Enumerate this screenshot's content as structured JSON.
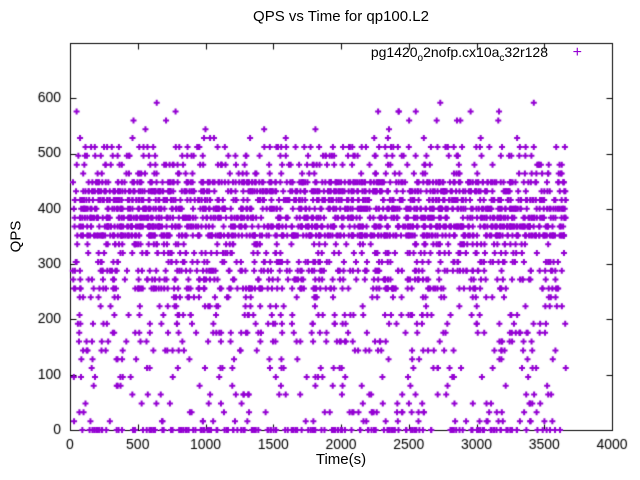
{
  "chart_data": {
    "type": "scatter",
    "title": "QPS vs Time for qp100.L2",
    "xlabel": "Time(s)",
    "ylabel": "QPS",
    "legend": {
      "position": "top-right-inside",
      "series_label_parts": [
        "pg1420",
        "o",
        "2nofp.cx10a",
        "c",
        "32r128"
      ],
      "series_label_plain": "pg1420_o2nofp.cx10a_c32r128",
      "marker": "plus",
      "marker_glyph": "+"
    },
    "color": "#9400d3",
    "axis_color": "#000000",
    "background": "#ffffff",
    "grid": false,
    "xlim": [
      0,
      4000
    ],
    "ylim": [
      0,
      700
    ],
    "xticks": [
      0,
      500,
      1000,
      1500,
      2000,
      2500,
      3000,
      3500,
      4000
    ],
    "yticks": [
      0,
      100,
      200,
      300,
      400,
      500,
      600
    ],
    "x_data_range": [
      20,
      3660
    ],
    "y_step": 16,
    "seed": 1337,
    "point_bands": [
      {
        "y_min": 0,
        "y_max": 0,
        "count": 170
      },
      {
        "y_min": 16,
        "y_max": 128,
        "count": 180
      },
      {
        "y_min": 144,
        "y_max": 240,
        "count": 260
      },
      {
        "y_min": 256,
        "y_max": 336,
        "count": 520
      },
      {
        "y_min": 352,
        "y_max": 448,
        "count": 1500
      },
      {
        "y_min": 464,
        "y_max": 512,
        "count": 220
      },
      {
        "y_min": 528,
        "y_max": 592,
        "count": 35
      }
    ]
  }
}
